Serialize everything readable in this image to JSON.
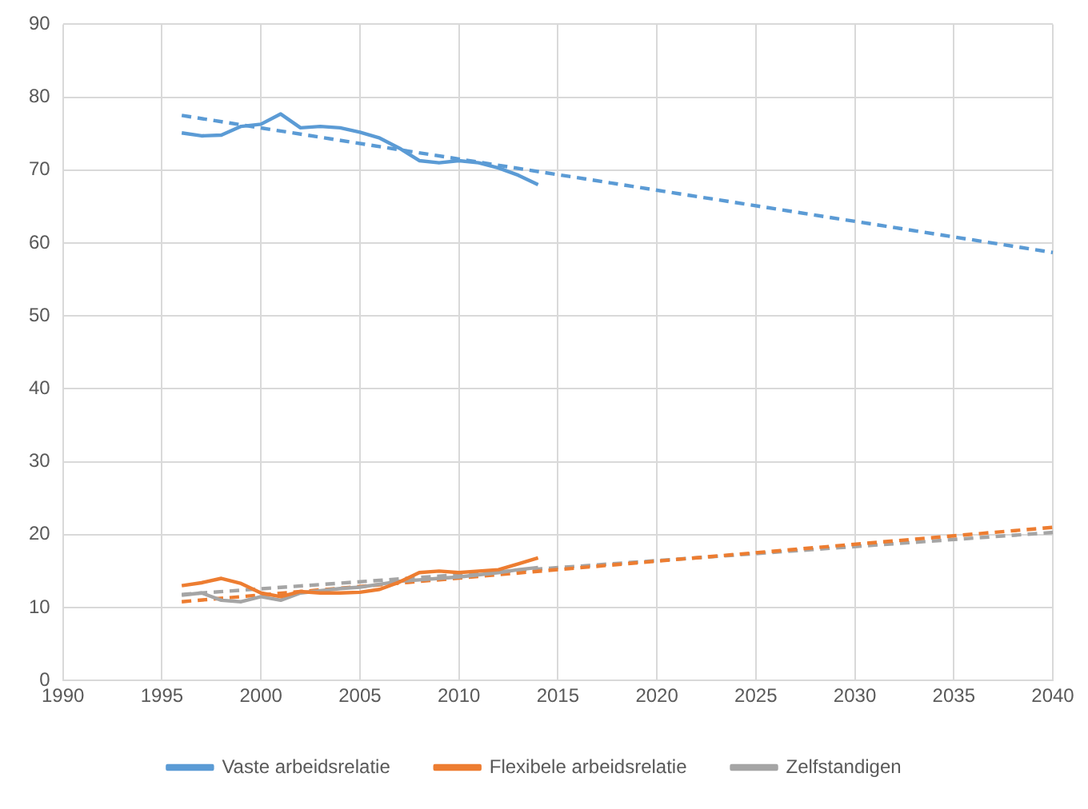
{
  "chart_data": {
    "type": "line",
    "marker": "none",
    "grid": true,
    "legend": "bottom",
    "xlim": [
      1990,
      2040
    ],
    "xticks": [
      1990,
      1995,
      2000,
      2005,
      2010,
      2015,
      2020,
      2025,
      2030,
      2035,
      2040
    ],
    "ylim": [
      0,
      90
    ],
    "yticks": [
      0,
      10,
      20,
      30,
      40,
      50,
      60,
      70,
      80,
      90
    ],
    "x": [
      1996,
      1997,
      1998,
      1999,
      2000,
      2001,
      2002,
      2003,
      2004,
      2005,
      2006,
      2007,
      2008,
      2009,
      2010,
      2011,
      2012,
      2013,
      2014,
      2040
    ],
    "series": [
      {
        "name": "Vaste arbeidsrelatie",
        "color": "#5b9bd5",
        "values": [
          75.1,
          74.7,
          74.8,
          76,
          76.3,
          77.7,
          75.8,
          76,
          75.8,
          75.2,
          74.4,
          73,
          71.3,
          71,
          71.3,
          71,
          70.3,
          69.3,
          68,
          null
        ]
      },
      {
        "name": "Flexibele arbeidsrelatie",
        "color": "#ed7d31",
        "values": [
          13,
          13.4,
          14,
          13.3,
          12,
          11.5,
          12.2,
          12,
          12,
          12.1,
          12.5,
          13.5,
          14.8,
          15,
          14.8,
          15,
          15.2,
          16,
          16.8,
          null
        ]
      },
      {
        "name": "Zelfstandigen",
        "color": "#a5a5a5",
        "values": [
          11.7,
          12,
          11,
          10.8,
          11.5,
          11,
          12,
          12.3,
          12.6,
          12.8,
          13.2,
          13.6,
          13.8,
          14,
          14.2,
          14.5,
          14.8,
          15.2,
          15.5,
          null
        ]
      },
      {
        "type": "line",
        "line_style": "dashed",
        "color": "#5b9bd5",
        "values": [
          77.5,
          null,
          null,
          null,
          null,
          null,
          null,
          null,
          null,
          null,
          null,
          null,
          null,
          null,
          null,
          null,
          null,
          null,
          null,
          58.7
        ]
      },
      {
        "type": "line",
        "line_style": "dashed",
        "color": "#ed7d31",
        "values": [
          10.8,
          null,
          null,
          null,
          null,
          null,
          null,
          null,
          null,
          null,
          null,
          null,
          null,
          null,
          null,
          null,
          null,
          null,
          null,
          21
        ]
      },
      {
        "type": "line",
        "line_style": "dashed",
        "color": "#a5a5a5",
        "values": [
          11.8,
          null,
          null,
          null,
          null,
          null,
          null,
          null,
          null,
          null,
          null,
          null,
          null,
          null,
          null,
          null,
          null,
          null,
          null,
          20.3
        ]
      }
    ]
  }
}
